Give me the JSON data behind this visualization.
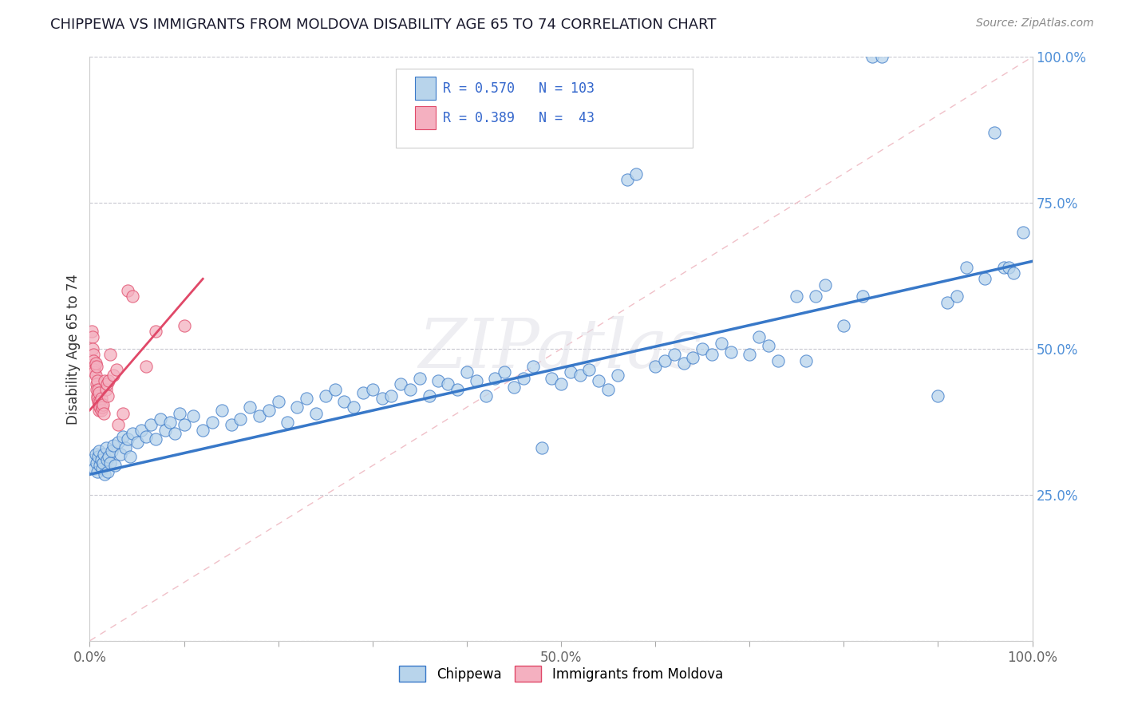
{
  "title": "CHIPPEWA VS IMMIGRANTS FROM MOLDOVA DISABILITY AGE 65 TO 74 CORRELATION CHART",
  "source": "Source: ZipAtlas.com",
  "ylabel": "Disability Age 65 to 74",
  "xlim": [
    0,
    1.0
  ],
  "ylim": [
    0,
    1.0
  ],
  "xtick_positions": [
    0.0,
    0.1,
    0.2,
    0.3,
    0.4,
    0.5,
    0.6,
    0.7,
    0.8,
    0.9,
    1.0
  ],
  "ytick_positions": [
    0.0,
    0.25,
    0.5,
    0.75,
    1.0
  ],
  "xticklabels": [
    "0.0%",
    "",
    "",
    "",
    "",
    "50.0%",
    "",
    "",
    "",
    "",
    "100.0%"
  ],
  "yticklabels": [
    "",
    "25.0%",
    "50.0%",
    "75.0%",
    "100.0%"
  ],
  "watermark": "ZIPatlas",
  "chippewa_color": "#b8d4eb",
  "moldova_color": "#f4b0c0",
  "trend_color_chippewa": "#3878c8",
  "trend_color_moldova": "#e04868",
  "diag_color": "#f0c0c8",
  "background_color": "#ffffff",
  "grid_color": "#c8c8d0",
  "ytick_color": "#5090d8",
  "xtick_color": "#666666",
  "title_color": "#1a1a2e",
  "source_color": "#888888",
  "legend_text_color": "#3366cc",
  "chippewa_points": [
    [
      0.003,
      0.31
    ],
    [
      0.005,
      0.295
    ],
    [
      0.006,
      0.32
    ],
    [
      0.007,
      0.305
    ],
    [
      0.008,
      0.29
    ],
    [
      0.009,
      0.315
    ],
    [
      0.01,
      0.325
    ],
    [
      0.011,
      0.3
    ],
    [
      0.012,
      0.31
    ],
    [
      0.013,
      0.295
    ],
    [
      0.014,
      0.305
    ],
    [
      0.015,
      0.32
    ],
    [
      0.016,
      0.285
    ],
    [
      0.017,
      0.33
    ],
    [
      0.018,
      0.31
    ],
    [
      0.019,
      0.29
    ],
    [
      0.02,
      0.315
    ],
    [
      0.022,
      0.305
    ],
    [
      0.023,
      0.325
    ],
    [
      0.025,
      0.335
    ],
    [
      0.027,
      0.3
    ],
    [
      0.03,
      0.34
    ],
    [
      0.033,
      0.32
    ],
    [
      0.035,
      0.35
    ],
    [
      0.038,
      0.33
    ],
    [
      0.04,
      0.345
    ],
    [
      0.043,
      0.315
    ],
    [
      0.045,
      0.355
    ],
    [
      0.05,
      0.34
    ],
    [
      0.055,
      0.36
    ],
    [
      0.06,
      0.35
    ],
    [
      0.065,
      0.37
    ],
    [
      0.07,
      0.345
    ],
    [
      0.075,
      0.38
    ],
    [
      0.08,
      0.36
    ],
    [
      0.085,
      0.375
    ],
    [
      0.09,
      0.355
    ],
    [
      0.095,
      0.39
    ],
    [
      0.1,
      0.37
    ],
    [
      0.11,
      0.385
    ],
    [
      0.12,
      0.36
    ],
    [
      0.13,
      0.375
    ],
    [
      0.14,
      0.395
    ],
    [
      0.15,
      0.37
    ],
    [
      0.16,
      0.38
    ],
    [
      0.17,
      0.4
    ],
    [
      0.18,
      0.385
    ],
    [
      0.19,
      0.395
    ],
    [
      0.2,
      0.41
    ],
    [
      0.21,
      0.375
    ],
    [
      0.22,
      0.4
    ],
    [
      0.23,
      0.415
    ],
    [
      0.24,
      0.39
    ],
    [
      0.25,
      0.42
    ],
    [
      0.26,
      0.43
    ],
    [
      0.27,
      0.41
    ],
    [
      0.28,
      0.4
    ],
    [
      0.29,
      0.425
    ],
    [
      0.3,
      0.43
    ],
    [
      0.31,
      0.415
    ],
    [
      0.32,
      0.42
    ],
    [
      0.33,
      0.44
    ],
    [
      0.34,
      0.43
    ],
    [
      0.35,
      0.45
    ],
    [
      0.36,
      0.42
    ],
    [
      0.37,
      0.445
    ],
    [
      0.38,
      0.44
    ],
    [
      0.39,
      0.43
    ],
    [
      0.4,
      0.46
    ],
    [
      0.41,
      0.445
    ],
    [
      0.42,
      0.42
    ],
    [
      0.43,
      0.45
    ],
    [
      0.44,
      0.46
    ],
    [
      0.45,
      0.435
    ],
    [
      0.46,
      0.45
    ],
    [
      0.47,
      0.47
    ],
    [
      0.48,
      0.33
    ],
    [
      0.49,
      0.45
    ],
    [
      0.5,
      0.44
    ],
    [
      0.51,
      0.46
    ],
    [
      0.52,
      0.455
    ],
    [
      0.53,
      0.465
    ],
    [
      0.54,
      0.445
    ],
    [
      0.55,
      0.43
    ],
    [
      0.56,
      0.455
    ],
    [
      0.57,
      0.79
    ],
    [
      0.58,
      0.8
    ],
    [
      0.6,
      0.47
    ],
    [
      0.61,
      0.48
    ],
    [
      0.62,
      0.49
    ],
    [
      0.63,
      0.475
    ],
    [
      0.64,
      0.485
    ],
    [
      0.65,
      0.5
    ],
    [
      0.66,
      0.49
    ],
    [
      0.67,
      0.51
    ],
    [
      0.68,
      0.495
    ],
    [
      0.7,
      0.49
    ],
    [
      0.71,
      0.52
    ],
    [
      0.72,
      0.505
    ],
    [
      0.73,
      0.48
    ],
    [
      0.75,
      0.59
    ],
    [
      0.76,
      0.48
    ],
    [
      0.77,
      0.59
    ],
    [
      0.78,
      0.61
    ],
    [
      0.8,
      0.54
    ],
    [
      0.82,
      0.59
    ],
    [
      0.83,
      1.0
    ],
    [
      0.84,
      1.0
    ],
    [
      0.9,
      0.42
    ],
    [
      0.91,
      0.58
    ],
    [
      0.92,
      0.59
    ],
    [
      0.93,
      0.64
    ],
    [
      0.95,
      0.62
    ],
    [
      0.96,
      0.87
    ],
    [
      0.97,
      0.64
    ],
    [
      0.975,
      0.64
    ],
    [
      0.98,
      0.63
    ],
    [
      0.99,
      0.7
    ]
  ],
  "moldova_points": [
    [
      0.002,
      0.53
    ],
    [
      0.003,
      0.52
    ],
    [
      0.003,
      0.5
    ],
    [
      0.004,
      0.49
    ],
    [
      0.004,
      0.48
    ],
    [
      0.005,
      0.47
    ],
    [
      0.005,
      0.465
    ],
    [
      0.005,
      0.46
    ],
    [
      0.006,
      0.475
    ],
    [
      0.006,
      0.455
    ],
    [
      0.007,
      0.47
    ],
    [
      0.007,
      0.44
    ],
    [
      0.007,
      0.43
    ],
    [
      0.008,
      0.445
    ],
    [
      0.008,
      0.42
    ],
    [
      0.008,
      0.415
    ],
    [
      0.009,
      0.43
    ],
    [
      0.009,
      0.41
    ],
    [
      0.01,
      0.425
    ],
    [
      0.01,
      0.405
    ],
    [
      0.01,
      0.395
    ],
    [
      0.011,
      0.41
    ],
    [
      0.011,
      0.4
    ],
    [
      0.012,
      0.415
    ],
    [
      0.012,
      0.395
    ],
    [
      0.013,
      0.4
    ],
    [
      0.014,
      0.405
    ],
    [
      0.015,
      0.39
    ],
    [
      0.016,
      0.445
    ],
    [
      0.017,
      0.43
    ],
    [
      0.018,
      0.44
    ],
    [
      0.019,
      0.42
    ],
    [
      0.02,
      0.445
    ],
    [
      0.022,
      0.49
    ],
    [
      0.025,
      0.455
    ],
    [
      0.028,
      0.465
    ],
    [
      0.03,
      0.37
    ],
    [
      0.035,
      0.39
    ],
    [
      0.04,
      0.6
    ],
    [
      0.045,
      0.59
    ],
    [
      0.06,
      0.47
    ],
    [
      0.07,
      0.53
    ],
    [
      0.1,
      0.54
    ]
  ],
  "chippewa_trend": [
    0.0,
    1.0,
    0.285,
    0.65
  ],
  "moldova_trend": [
    0.0,
    0.12,
    0.395,
    0.62
  ],
  "diag_trend": [
    0.0,
    1.0,
    0.0,
    1.0
  ]
}
